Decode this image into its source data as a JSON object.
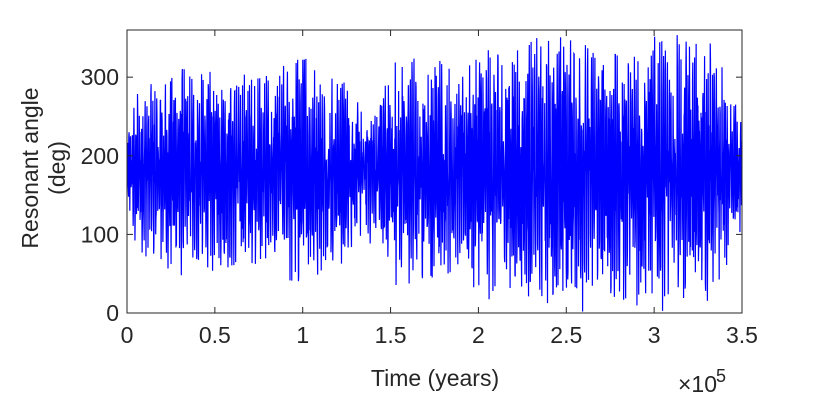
{
  "chart_data": {
    "type": "line",
    "xlabel": "Time (years)",
    "ylabel_line1": "Resonant angle",
    "ylabel_line2": "(deg)",
    "x_multiplier": "×10",
    "x_multiplier_exponent": "5",
    "xlim": [
      0,
      3.5
    ],
    "ylim": [
      0,
      360
    ],
    "x_ticks": [
      0,
      0.5,
      1,
      1.5,
      2,
      2.5,
      3,
      3.5
    ],
    "x_tick_labels": [
      "0",
      "0.5",
      "1",
      "1.5",
      "2",
      "2.5",
      "3",
      "3.5"
    ],
    "y_ticks": [
      0,
      100,
      200,
      300
    ],
    "y_tick_labels": [
      "0",
      "100",
      "200",
      "300"
    ],
    "grid": false,
    "line_color": "#0000ff",
    "series": [
      {
        "libration_envelope": [
          {
            "x": 0.0,
            "low": 130,
            "high": 235
          },
          {
            "x": 0.05,
            "low": 85,
            "high": 290
          },
          {
            "x": 0.25,
            "low": 40,
            "high": 320
          },
          {
            "x": 0.5,
            "low": 50,
            "high": 310
          },
          {
            "x": 0.75,
            "low": 45,
            "high": 300
          },
          {
            "x": 1.0,
            "low": 40,
            "high": 345
          },
          {
            "x": 1.25,
            "low": 60,
            "high": 290
          },
          {
            "x": 1.35,
            "low": 100,
            "high": 255
          },
          {
            "x": 1.5,
            "low": 35,
            "high": 330
          },
          {
            "x": 1.75,
            "low": 40,
            "high": 340
          },
          {
            "x": 1.9,
            "low": 60,
            "high": 300
          },
          {
            "x": 2.0,
            "low": 10,
            "high": 330
          },
          {
            "x": 2.2,
            "low": 20,
            "high": 345
          },
          {
            "x": 2.5,
            "low": 0,
            "high": 360
          },
          {
            "x": 2.8,
            "low": 0,
            "high": 360
          },
          {
            "x": 3.1,
            "low": 0,
            "high": 360
          },
          {
            "x": 3.3,
            "low": 0,
            "high": 360
          },
          {
            "x": 3.5,
            "low": 95,
            "high": 250
          }
        ],
        "center": 180
      }
    ]
  }
}
